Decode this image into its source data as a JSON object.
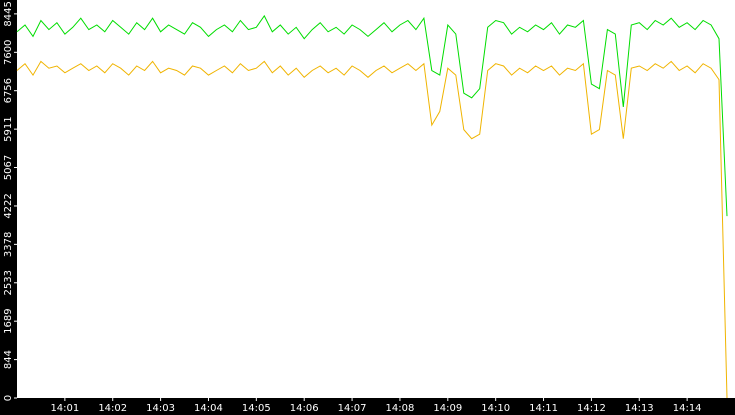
{
  "chart_data": {
    "type": "line",
    "categories": [
      null,
      null,
      null,
      null,
      null,
      null,
      "14:01",
      null,
      null,
      null,
      null,
      null,
      "14:02",
      null,
      null,
      null,
      null,
      null,
      "14:03",
      null,
      null,
      null,
      null,
      null,
      "14:04",
      null,
      null,
      null,
      null,
      null,
      "14:05",
      null,
      null,
      null,
      null,
      null,
      "14:06",
      null,
      null,
      null,
      null,
      null,
      "14:07",
      null,
      null,
      null,
      null,
      null,
      "14:08",
      null,
      null,
      null,
      null,
      null,
      "14:09",
      null,
      null,
      null,
      null,
      null,
      "14:10",
      null,
      null,
      null,
      null,
      null,
      "14:11",
      null,
      null,
      null,
      null,
      null,
      "14:12",
      null,
      null,
      null,
      null,
      null,
      "14:13",
      null,
      null,
      null,
      null,
      null,
      "14:14",
      null,
      null,
      null,
      null,
      null
    ],
    "series": [
      {
        "color": "#00dd00",
        "values": [
          8050,
          8200,
          7950,
          8300,
          8100,
          8250,
          8000,
          8150,
          8350,
          8100,
          8200,
          8050,
          8300,
          8150,
          8000,
          8250,
          8100,
          8350,
          8050,
          8200,
          8100,
          8000,
          8250,
          8150,
          7950,
          8100,
          8200,
          8050,
          8300,
          8100,
          8150,
          8400,
          8050,
          8200,
          8000,
          8150,
          7900,
          8100,
          8250,
          8050,
          8150,
          8000,
          8200,
          8100,
          7950,
          8100,
          8250,
          8050,
          8200,
          8300,
          8100,
          8350,
          7200,
          7100,
          8200,
          8000,
          6700,
          6600,
          6800,
          8150,
          8300,
          8250,
          8000,
          8150,
          8050,
          8200,
          8100,
          8250,
          8000,
          8200,
          8150,
          8300,
          6900,
          6800,
          8100,
          8000,
          6400,
          8200,
          8250,
          8100,
          8300,
          8200,
          8350,
          8150,
          8250,
          8100,
          8300,
          8200,
          7900,
          4000
        ]
      },
      {
        "color": "#f0b400",
        "values": [
          7200,
          7350,
          7100,
          7400,
          7250,
          7300,
          7150,
          7250,
          7350,
          7200,
          7300,
          7150,
          7350,
          7250,
          7100,
          7300,
          7200,
          7400,
          7150,
          7250,
          7200,
          7100,
          7300,
          7250,
          7100,
          7200,
          7300,
          7150,
          7350,
          7200,
          7250,
          7400,
          7150,
          7300,
          7100,
          7250,
          7050,
          7200,
          7300,
          7150,
          7250,
          7100,
          7300,
          7200,
          7050,
          7200,
          7300,
          7150,
          7250,
          7350,
          7200,
          7350,
          6000,
          6300,
          7250,
          7100,
          5900,
          5700,
          5800,
          7200,
          7350,
          7300,
          7100,
          7250,
          7150,
          7300,
          7200,
          7300,
          7100,
          7250,
          7200,
          7350,
          5800,
          5900,
          7200,
          7100,
          5700,
          7250,
          7300,
          7200,
          7350,
          7250,
          7400,
          7200,
          7300,
          7150,
          7350,
          7250,
          7000,
          0
        ]
      }
    ],
    "ylim": [
      0,
      8750
    ],
    "yticks": [
      0,
      844,
      1689,
      2533,
      3378,
      4222,
      5067,
      5911,
      6756,
      7600,
      8445
    ]
  }
}
